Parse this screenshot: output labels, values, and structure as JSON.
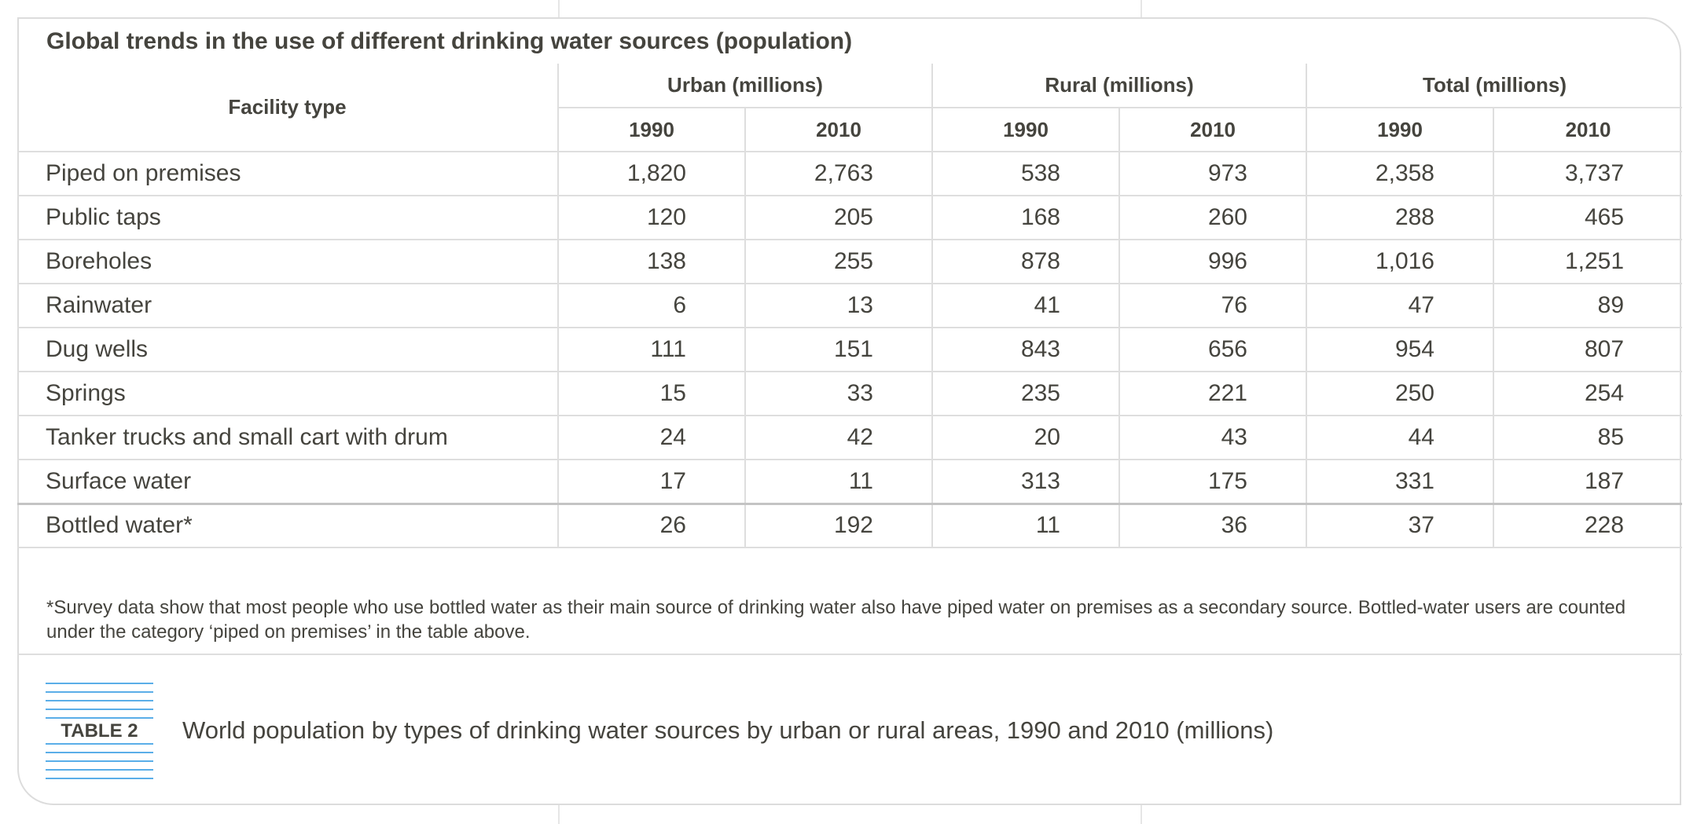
{
  "title": "Global trends in the use of different drinking water sources (population)",
  "columns": {
    "facility": "Facility type",
    "groups": [
      "Urban (millions)",
      "Rural (millions)",
      "Total (millions)"
    ],
    "years": [
      "1990",
      "2010",
      "1990",
      "2010",
      "1990",
      "2010"
    ]
  },
  "rows": [
    {
      "label": "Piped on premises",
      "values": [
        "1,820",
        "2,763",
        "538",
        "973",
        "2,358",
        "3,737"
      ]
    },
    {
      "label": "Public taps",
      "values": [
        "120",
        "205",
        "168",
        "260",
        "288",
        "465"
      ]
    },
    {
      "label": "Boreholes",
      "values": [
        "138",
        "255",
        "878",
        "996",
        "1,016",
        "1,251"
      ]
    },
    {
      "label": "Rainwater",
      "values": [
        "6",
        "13",
        "41",
        "76",
        "47",
        "89"
      ]
    },
    {
      "label": "Dug wells",
      "values": [
        "111",
        "151",
        "843",
        "656",
        "954",
        "807"
      ]
    },
    {
      "label": "Springs",
      "values": [
        "15",
        "33",
        "235",
        "221",
        "250",
        "254"
      ]
    },
    {
      "label": "Tanker trucks and small cart with drum",
      "values": [
        "24",
        "42",
        "20",
        "43",
        "44",
        "85"
      ]
    },
    {
      "label": "Surface water",
      "values": [
        "17",
        "11",
        "313",
        "175",
        "331",
        "187"
      ]
    },
    {
      "label": "Bottled water*",
      "values": [
        "26",
        "192",
        "11",
        "36",
        "37",
        "228"
      ]
    }
  ],
  "footnote": "*Survey data show that most people who use bottled water as their main source of drinking water also have piped water on premises as a secondary source. Bottled-water users are counted under the category ‘piped on premises’ in the table above.",
  "badge": "TABLE 2",
  "caption": "World population by types of drinking water sources by urban or rural areas, 1990 and 2010 (millions)",
  "accent_color": "#5aaee8"
}
